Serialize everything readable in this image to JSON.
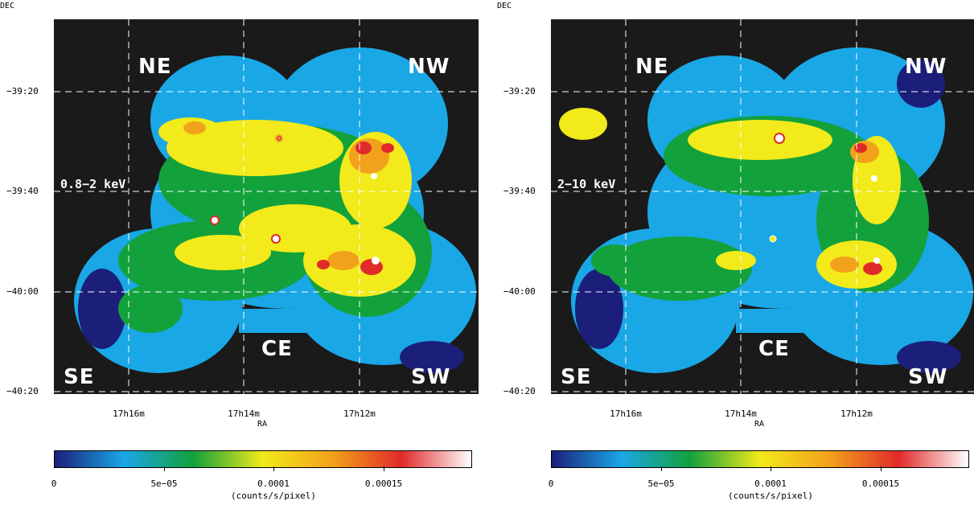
{
  "axes": {
    "dec_label": "DEC",
    "ra_label": "RA",
    "dec_ticks": [
      "−39:20",
      "−39:40",
      "−40:00",
      "−40:20"
    ],
    "ra_ticks": [
      "17h16m",
      "17h14m",
      "17h12m"
    ]
  },
  "regions": {
    "ne": "NE",
    "nw": "NW",
    "se": "SE",
    "sw": "SW",
    "ce": "CE"
  },
  "panels": [
    {
      "band": "0.8−2 keV"
    },
    {
      "band": "2−10 keV"
    }
  ],
  "colorbar": {
    "ticks": [
      "0",
      "5e−05",
      "0.0001",
      "0.00015"
    ],
    "units": "(counts/s/pixel)",
    "colors": [
      "#1b1f7a",
      "#1aa7e6",
      "#13a13b",
      "#f2ea1a",
      "#f2a11a",
      "#e12a2a",
      "#ffffff"
    ]
  }
}
